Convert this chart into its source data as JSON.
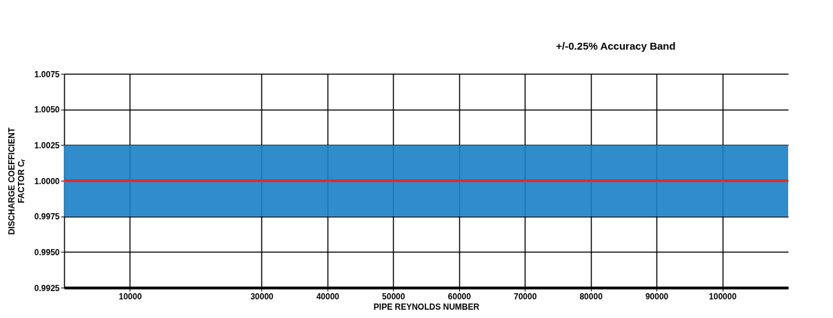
{
  "chart_data": {
    "type": "line",
    "xlabel": "PIPE REYNOLDS NUMBER",
    "ylabel": "DISCHARGE COEFFICIENT\nFACTOR Cᵣ",
    "xlim": [
      0,
      110000
    ],
    "xticks": [
      10000,
      30000,
      40000,
      50000,
      60000,
      70000,
      80000,
      90000,
      100000
    ],
    "ylim": [
      0.9925,
      1.0075
    ],
    "yticks": [
      0.9925,
      {
        "value": 0.995,
        "label": "0.9950"
      },
      0.9975,
      {
        "value": 1.0,
        "label": "1.0000"
      },
      1.0025,
      {
        "value": 1.005,
        "label": "1.0050"
      },
      1.0075
    ],
    "annotations": [
      "+/-0.25% Accuracy Band"
    ],
    "grid": true,
    "bands": [
      {
        "axis": "y",
        "from": 0.9975,
        "to": 1.0025,
        "label": null,
        "color": "#1a80c4"
      }
    ],
    "series": [
      {
        "color": "#e02b2b",
        "x": [
          0,
          110000
        ],
        "values": [
          1.0,
          1.0
        ]
      }
    ]
  }
}
